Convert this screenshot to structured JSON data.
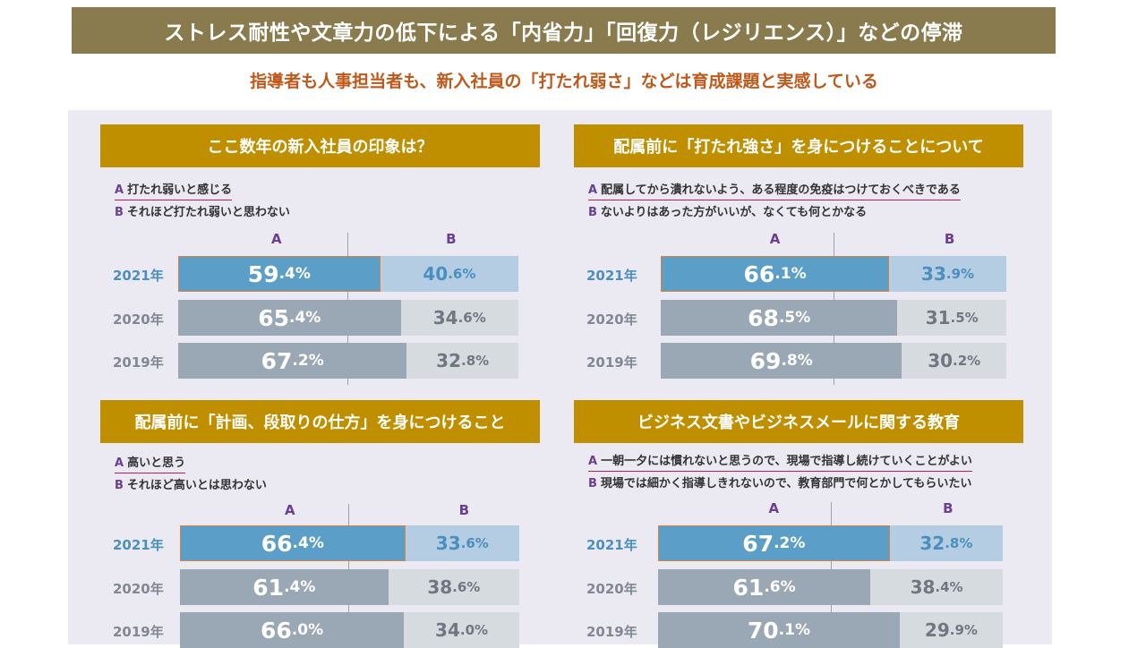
{
  "header": {
    "banner": "ストレス耐性や文章力の低下による「内省力」「回復力（レジリエンス）」などの停滞",
    "subtitle": "指導者も人事担当者も、新入社員の「打たれ弱さ」などは育成課題と実感している"
  },
  "colors": {
    "banner": "#8a7b4e",
    "section_header": "#bf8f00",
    "a_highlight": "#5b9fc8",
    "b_highlight": "#b4cde3",
    "a_past": "#9aa7b4",
    "b_past": "#d6dbe0",
    "year_highlight": "#4a8fc0",
    "year_past": "#7f8993",
    "accent_subtitle": "#c0581a"
  },
  "chart_data": [
    {
      "type": "bar",
      "stacked": true,
      "orientation": "horizontal",
      "title": "ここ数年の新入社員の印象は？",
      "legend": {
        "A": "打たれ弱いと感じる",
        "B": "それほど打たれ弱いと思わない"
      },
      "column_labels": [
        "A",
        "B"
      ],
      "categories": [
        "2021年",
        "2020年",
        "2019年"
      ],
      "series": [
        {
          "name": "A",
          "values": [
            59.4,
            65.4,
            67.2
          ]
        },
        {
          "name": "B",
          "values": [
            40.6,
            34.6,
            32.8
          ]
        }
      ],
      "xlim": [
        0,
        100
      ]
    },
    {
      "type": "bar",
      "stacked": true,
      "orientation": "horizontal",
      "title": "配属前に「打たれ強さ」を身につけることについて",
      "legend": {
        "A": "配属してから潰れないよう、ある程度の免疫はつけておくべきである",
        "B": "ないよりはあった方がいいが、なくても何とかなる"
      },
      "column_labels": [
        "A",
        "B"
      ],
      "categories": [
        "2021年",
        "2020年",
        "2019年"
      ],
      "series": [
        {
          "name": "A",
          "values": [
            66.1,
            68.5,
            69.8
          ]
        },
        {
          "name": "B",
          "values": [
            33.9,
            31.5,
            30.2
          ]
        }
      ],
      "xlim": [
        0,
        100
      ]
    },
    {
      "type": "bar",
      "stacked": true,
      "orientation": "horizontal",
      "title": "配属前に「計画、段取りの仕方」を身につけること",
      "legend": {
        "A": "高いと思う",
        "B": "それほど高いとは思わない"
      },
      "column_labels": [
        "A",
        "B"
      ],
      "categories": [
        "2021年",
        "2020年",
        "2019年"
      ],
      "series": [
        {
          "name": "A",
          "values": [
            66.4,
            61.4,
            66.0
          ]
        },
        {
          "name": "B",
          "values": [
            33.6,
            38.6,
            34.0
          ]
        }
      ],
      "xlim": [
        0,
        100
      ]
    },
    {
      "type": "bar",
      "stacked": true,
      "orientation": "horizontal",
      "title": "ビジネス文書やビジネスメールに関する教育",
      "legend": {
        "A": "一朝一夕には慣れないと思うので、現場で指導し続けていくことがよい",
        "B": "現場では細かく指導しきれないので、教育部門で何とかしてもらいたい"
      },
      "column_labels": [
        "A",
        "B"
      ],
      "categories": [
        "2021年",
        "2020年",
        "2019年"
      ],
      "series": [
        {
          "name": "A",
          "values": [
            67.2,
            61.6,
            70.1
          ]
        },
        {
          "name": "B",
          "values": [
            32.8,
            38.4,
            29.9
          ]
        }
      ],
      "xlim": [
        0,
        100
      ]
    }
  ]
}
